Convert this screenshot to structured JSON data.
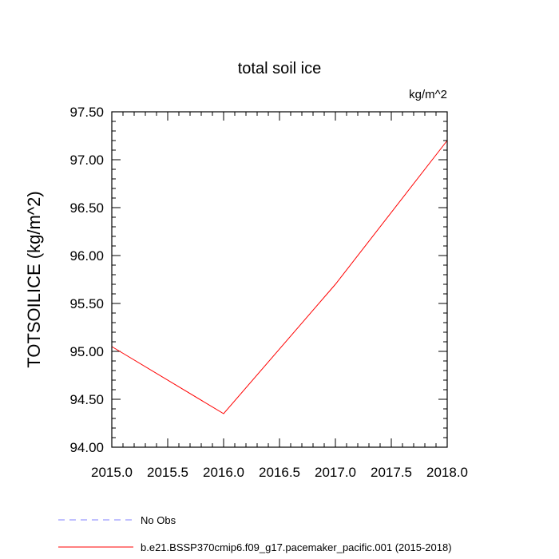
{
  "chart_data": {
    "type": "line",
    "title": "total soil ice",
    "units_label": "kg/m^2",
    "xlabel": "",
    "ylabel": "TOTSOILICE  (kg/m^2)",
    "xlim": [
      2015.0,
      2018.0
    ],
    "ylim": [
      94.0,
      97.5
    ],
    "x_ticks": [
      "2015.0",
      "2015.5",
      "2016.0",
      "2016.5",
      "2017.0",
      "2017.5",
      "2018.0"
    ],
    "y_ticks": [
      "94.00",
      "94.50",
      "95.00",
      "95.50",
      "96.00",
      "96.50",
      "97.00",
      "97.50"
    ],
    "grid": false,
    "legend_position": "bottom",
    "series": [
      {
        "name": "b.e21.BSSP370cmip6.f09_g17.pacemaker_pacific.001 (2015-2018)",
        "color": "#ff0000",
        "style": "solid",
        "x": [
          2015.0,
          2016.0,
          2017.0,
          2018.0
        ],
        "y": [
          95.05,
          94.35,
          95.7,
          97.2
        ]
      }
    ],
    "legend": [
      {
        "label": "No Obs",
        "color": "#8080ff",
        "style": "dashed"
      },
      {
        "label": "b.e21.BSSP370cmip6.f09_g17.pacemaker_pacific.001 (2015-2018)",
        "color": "#ff0000",
        "style": "solid"
      }
    ]
  }
}
